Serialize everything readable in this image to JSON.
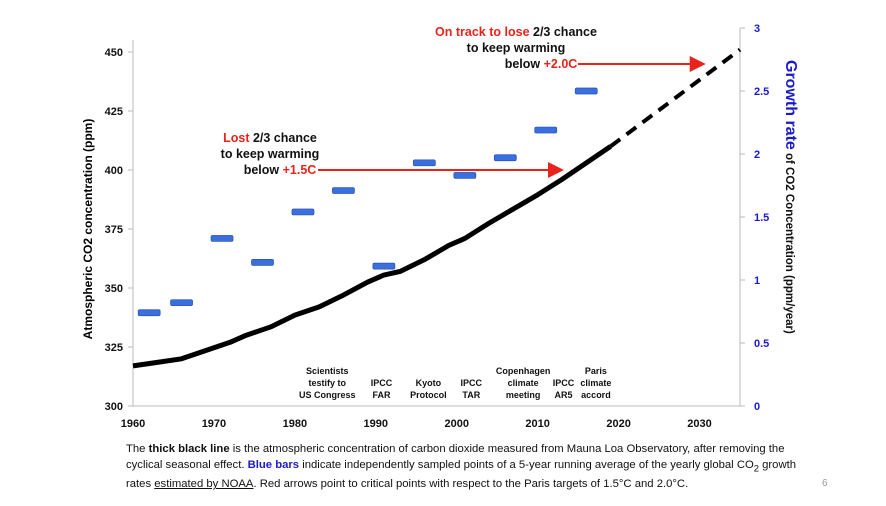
{
  "chart_data": {
    "type": "line",
    "title": "",
    "xlabel": "",
    "ylabel": "Atmospheric CO2 concentration (ppm)",
    "y2label_bold": "Growth rate",
    "y2label_rest": " of CO2 Concentration (ppm/year)",
    "xlim": [
      1960,
      2035
    ],
    "ylim": [
      300,
      450
    ],
    "y2lim": [
      0,
      3
    ],
    "xticks": [
      1960,
      1970,
      1980,
      1990,
      2000,
      2010,
      2020,
      2030
    ],
    "yticks": [
      300,
      325,
      350,
      375,
      400,
      425,
      450
    ],
    "y2ticks": [
      "0",
      "0.5",
      "1",
      "1.5",
      "2",
      "2.5",
      "3"
    ],
    "grid": false,
    "co2_line": {
      "x": [
        1960,
        1963,
        1966,
        1969,
        1972,
        1974,
        1977,
        1980,
        1983,
        1986,
        1989,
        1991,
        1993,
        1996,
        1999,
        2001,
        2004,
        2007,
        2010,
        2013,
        2016,
        2019
      ],
      "y": [
        317,
        318.5,
        320,
        323.5,
        327,
        330,
        333.5,
        338.5,
        342,
        347,
        352.5,
        355.5,
        357,
        362,
        368,
        371,
        377.5,
        383.5,
        389.5,
        396,
        403,
        410
      ]
    },
    "projection": {
      "x": [
        2019,
        2035
      ],
      "y": [
        410,
        451
      ],
      "style": "dashed"
    },
    "growth_bars": {
      "x": [
        1962,
        1966,
        1971,
        1976,
        1981,
        1986,
        1991,
        1996,
        2001,
        2006,
        2011,
        2016
      ],
      "y": [
        0.74,
        0.82,
        1.33,
        1.14,
        1.54,
        1.71,
        1.11,
        1.93,
        1.83,
        1.97,
        2.19,
        2.5
      ]
    },
    "colors": {
      "line": "#000000",
      "bars": "#3a6fe0",
      "arrows": "#e8231b",
      "right_axis": "#1a1acc"
    },
    "events": [
      {
        "year": 1984,
        "lines": [
          "Scientists",
          "testify to",
          "US Congress"
        ]
      },
      {
        "year": 1990.7,
        "lines": [
          "IPCC",
          "FAR"
        ]
      },
      {
        "year": 1996.5,
        "lines": [
          "Kyoto",
          "Protocol"
        ]
      },
      {
        "year": 2001.8,
        "lines": [
          "IPCC",
          "TAR"
        ]
      },
      {
        "year": 2008.2,
        "lines": [
          "Copenhagen",
          "climate",
          "meeting"
        ]
      },
      {
        "year": 2013.2,
        "lines": [
          "IPCC",
          "AR5"
        ]
      },
      {
        "year": 2017.2,
        "lines": [
          "Paris",
          "climate",
          "accord"
        ]
      }
    ],
    "annotations": [
      {
        "red": "Lost",
        "black": " 2/3 chance",
        "line2": "to keep warming",
        "line3a": "below ",
        "line3b": "+1.5C",
        "arrow_to": [
          2013,
          400
        ]
      },
      {
        "red": "On track to lose",
        "black": " 2/3 chance",
        "line2": "to keep warming",
        "line3a": "below ",
        "line3b": "+2.0C",
        "arrow_to": [
          2032,
          443
        ]
      }
    ]
  },
  "caption": {
    "p1": "The ",
    "b1": "thick black line",
    "p2": " is the atmospheric concentration of carbon dioxide measured from Mauna Loa Observatory, after removing the cyclical seasonal effect. ",
    "b2": "Blue bars",
    "p3": " indicate independently sampled points of a 5-year running average of the yearly global CO",
    "sub": "2",
    "p4": " growth rates ",
    "u": "estimated by NOAA",
    "p5": ". Red arrows point to critical points with respect to the Paris targets of 1.5°C and 2.0°C."
  },
  "page_number": "6"
}
